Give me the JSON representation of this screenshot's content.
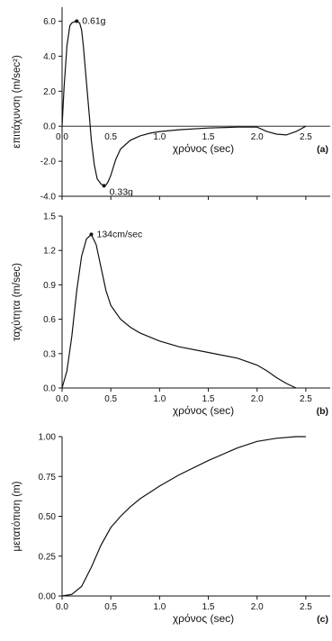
{
  "chart_data": [
    {
      "type": "line",
      "panel_label": "(a)",
      "xlabel": "χρόνος (sec)",
      "ylabel": "επιτάχυνση (m/sec²)",
      "xlim": [
        0,
        2.75
      ],
      "ylim": [
        -4.0,
        6.8
      ],
      "x_ticks": [
        "0.0",
        "0.5",
        "1.0",
        "1.5",
        "2.0",
        "2.5"
      ],
      "y_ticks": [
        "6.0",
        "4.0",
        "2.0",
        "0.0",
        "-2.0",
        "-4.0"
      ],
      "series": [
        {
          "x": [
            0,
            0.02,
            0.05,
            0.08,
            0.1,
            0.12,
            0.15,
            0.18,
            0.2,
            0.22,
            0.25,
            0.28,
            0.3,
            0.33,
            0.36,
            0.4,
            0.43,
            0.45,
            0.47,
            0.5,
            0.55,
            0.6,
            0.7,
            0.8,
            0.9,
            1.0,
            1.2,
            1.5,
            1.8,
            1.9,
            2.0,
            2.1,
            2.2,
            2.3,
            2.4,
            2.5
          ],
          "y": [
            0,
            2.2,
            4.6,
            5.75,
            5.9,
            5.95,
            6.0,
            5.9,
            5.5,
            4.5,
            2.5,
            0.6,
            -0.8,
            -2.2,
            -3.0,
            -3.3,
            -3.4,
            -3.35,
            -3.2,
            -2.8,
            -1.9,
            -1.3,
            -0.8,
            -0.55,
            -0.4,
            -0.3,
            -0.2,
            -0.1,
            -0.05,
            -0.05,
            -0.05,
            -0.3,
            -0.45,
            -0.5,
            -0.3,
            0.0
          ]
        }
      ],
      "annotations": [
        {
          "text": "0.61g",
          "x": 0.15,
          "y": 6.0
        },
        {
          "text": "0.33g",
          "x": 0.43,
          "y": -3.4
        }
      ]
    },
    {
      "type": "line",
      "panel_label": "(b)",
      "xlabel": "χρόνος (sec)",
      "ylabel": "ταχύτητα (m/sec)",
      "xlim": [
        0,
        2.75
      ],
      "ylim": [
        0,
        1.5
      ],
      "x_ticks": [
        "0.0",
        "0.5",
        "1.0",
        "1.5",
        "2.0",
        "2.5"
      ],
      "y_ticks": [
        "1.5",
        "1.2",
        "0.9",
        "0.6",
        "0.3",
        "0.0"
      ],
      "series": [
        {
          "x": [
            0,
            0.05,
            0.1,
            0.15,
            0.2,
            0.25,
            0.3,
            0.35,
            0.4,
            0.45,
            0.5,
            0.6,
            0.7,
            0.8,
            1.0,
            1.2,
            1.5,
            1.8,
            2.0,
            2.1,
            2.2,
            2.3,
            2.4
          ],
          "y": [
            0,
            0.15,
            0.45,
            0.85,
            1.15,
            1.3,
            1.34,
            1.25,
            1.05,
            0.85,
            0.72,
            0.6,
            0.53,
            0.48,
            0.41,
            0.36,
            0.31,
            0.26,
            0.2,
            0.15,
            0.09,
            0.04,
            0.0
          ]
        }
      ],
      "annotations": [
        {
          "text": "134cm/sec",
          "x": 0.3,
          "y": 1.34
        }
      ]
    },
    {
      "type": "line",
      "panel_label": "(c)",
      "xlabel": "χρόνος (sec)",
      "ylabel": "μετατόπιση (m)",
      "xlim": [
        0,
        2.75
      ],
      "ylim": [
        0,
        1.0
      ],
      "x_ticks": [
        "0.0",
        "0.5",
        "1.0",
        "1.5",
        "2.0",
        "2.5"
      ],
      "y_ticks": [
        "1.00",
        "0.75",
        "0.50",
        "0.25",
        "0.00"
      ],
      "series": [
        {
          "x": [
            0,
            0.1,
            0.2,
            0.3,
            0.4,
            0.5,
            0.6,
            0.7,
            0.8,
            1.0,
            1.2,
            1.5,
            1.8,
            2.0,
            2.2,
            2.4,
            2.5
          ],
          "y": [
            0,
            0.01,
            0.06,
            0.18,
            0.32,
            0.43,
            0.5,
            0.56,
            0.61,
            0.69,
            0.76,
            0.85,
            0.93,
            0.97,
            0.99,
            1.0,
            1.0
          ]
        }
      ],
      "annotations": []
    }
  ]
}
